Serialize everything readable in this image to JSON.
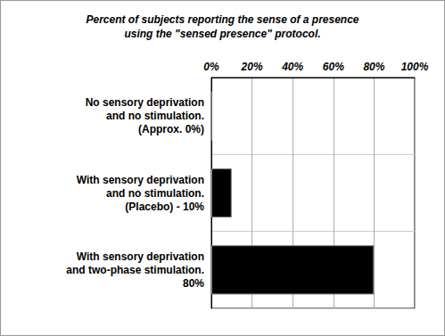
{
  "chart_data": {
    "type": "bar",
    "title": "Percent of subjects reporting the sense of a presence\nusing the \"sensed presence\" protocol.",
    "categories": [
      "No sensory deprivation\nand no stimulation.\n(Approx. 0%)",
      "With sensory deprivation\nand no stimulation.\n(Placebo) - 10%",
      "With sensory deprivation\nand two-phase stimulation.\n80%"
    ],
    "values": [
      0,
      10,
      80
    ],
    "color": "#000000",
    "orientation": "horizontal",
    "xlim": [
      0,
      100
    ],
    "xticks": [
      {
        "value": 0,
        "label": "0%"
      },
      {
        "value": 20,
        "label": "20%"
      },
      {
        "value": 40,
        "label": "40%"
      },
      {
        "value": 60,
        "label": "60%"
      },
      {
        "value": 80,
        "label": "80%"
      },
      {
        "value": 100,
        "label": "100%"
      }
    ],
    "grid": true
  }
}
